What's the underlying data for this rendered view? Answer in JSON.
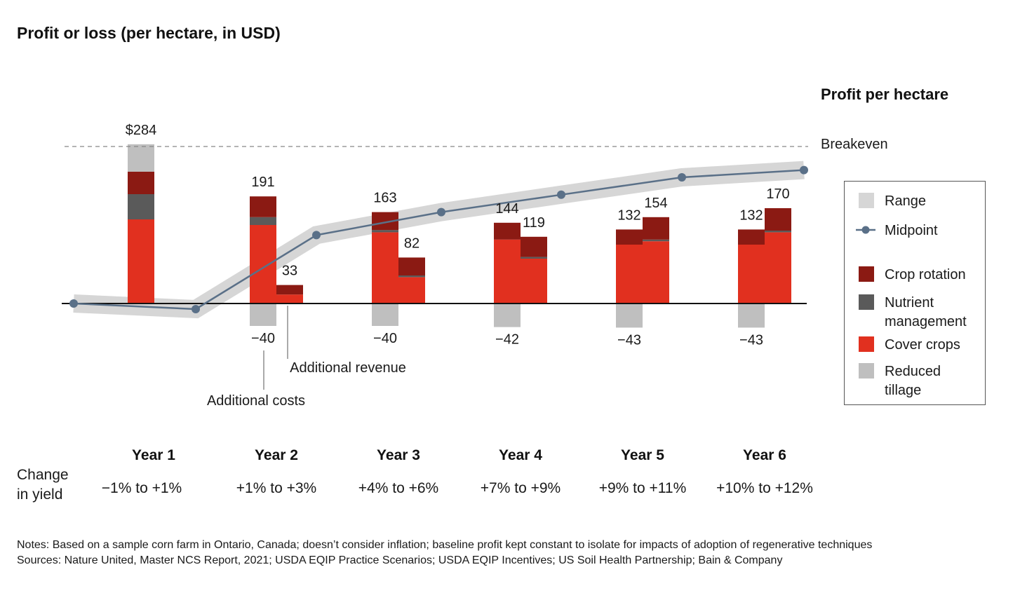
{
  "title": "Profit or loss (per hectare, in USD)",
  "chart_data": {
    "type": "bar",
    "categories": [
      "Year 1",
      "Year 2",
      "Year 3",
      "Year 4",
      "Year 5",
      "Year 6"
    ],
    "change_in_yield_label": "Change in yield",
    "change_in_yield": [
      "−1% to +1%",
      "+1% to +3%",
      "+4% to +6%",
      "+7% to +9%",
      "+9% to +11%",
      "+10% to +12%"
    ],
    "additional_costs": {
      "values": [
        null,
        -40,
        -40,
        -42,
        -43,
        -43
      ],
      "labels": [
        "",
        "−40",
        "−40",
        "−42",
        "−43",
        "−43"
      ],
      "color": "#bfbfbf"
    },
    "additional_revenue": {
      "values": [
        284,
        191,
        163,
        144,
        132,
        132
      ],
      "labels": [
        "$284",
        "191",
        "163",
        "144",
        "132",
        "132"
      ],
      "series": [
        {
          "name": "Crop rotation",
          "values": [
            40,
            37,
            32,
            30,
            27,
            27
          ],
          "color": "#8b1a13"
        },
        {
          "name": "Nutrient management",
          "values": [
            45,
            14,
            4,
            0,
            0,
            0
          ],
          "color": "#5a5a5a"
        },
        {
          "name": "Cover crops",
          "values": [
            150,
            140,
            127,
            114,
            105,
            105
          ],
          "color": "#e1301f"
        },
        {
          "name": "Reduced tillage",
          "values": [
            49,
            0,
            0,
            0,
            0,
            0
          ],
          "color": "#bfbfbf"
        }
      ]
    },
    "year2_plus_revenue": {
      "values": [
        null,
        33,
        82,
        119,
        154,
        170
      ],
      "labels": [
        "",
        "33",
        "82",
        "119",
        "154",
        "170"
      ],
      "series": [
        {
          "name": "Crop rotation",
          "values": [
            0,
            17,
            32,
            36,
            40,
            40
          ],
          "color": "#8b1a13"
        },
        {
          "name": "Nutrient management",
          "values": [
            0,
            0,
            3,
            3,
            3,
            3
          ],
          "color": "#5a5a5a"
        },
        {
          "name": "Cover crops",
          "values": [
            0,
            16,
            47,
            80,
            111,
            127
          ],
          "color": "#e1301f"
        }
      ]
    },
    "profit_per_hectare": {
      "name": "Profit per hectare",
      "x": [
        "Year 1",
        "Year 1–2",
        "Year 2–3",
        "Year 3–4",
        "Year 4–5",
        "Year 5–6",
        "Year 6"
      ],
      "values": [
        0,
        -10,
        122,
        163,
        194,
        225,
        238
      ],
      "color": "#5a7088",
      "range_color": "#d6d6d6"
    },
    "breakeven_label": "Breakeven",
    "ylim": [
      -60,
      330
    ],
    "annotations": {
      "additional_costs": "Additional costs",
      "additional_revenue": "Additional revenue"
    },
    "legend": [
      {
        "label": "Range",
        "kind": "swatch",
        "color": "#d6d6d6"
      },
      {
        "label": "Midpoint",
        "kind": "line",
        "color": "#5a7088"
      },
      {
        "label": "Crop rotation",
        "kind": "swatch",
        "color": "#8b1a13"
      },
      {
        "label": "Nutrient management",
        "kind": "swatch",
        "color": "#5a5a5a"
      },
      {
        "label": "Cover crops",
        "kind": "swatch",
        "color": "#e1301f"
      },
      {
        "label": "Reduced tillage",
        "kind": "swatch",
        "color": "#bfbfbf"
      }
    ],
    "legend_placement": "right"
  },
  "notes": [
    "Notes: Based on a sample corn farm in Ontario, Canada; doesn’t consider inflation; baseline profit kept constant to isolate for impacts of adoption of regenerative techniques",
    "Sources: Nature United, Master NCS Report, 2021; USDA EQIP Practice Scenarios; USDA EQIP Incentives; US Soil Health Partnership; Bain & Company"
  ]
}
